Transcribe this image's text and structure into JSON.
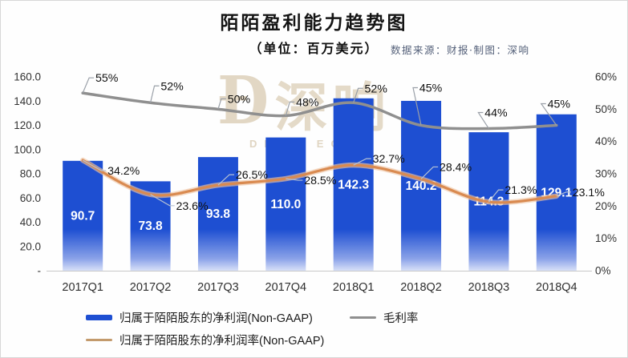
{
  "header": {
    "title": "陌陌盈利能力趋势图",
    "subtitle": "（单位：百万美元）",
    "source": "数据来源：财报·制图：深响"
  },
  "watermark": {
    "cn": "深响",
    "en": "DEEP ECHO"
  },
  "chart_data": {
    "type": "combo",
    "categories": [
      "2017Q1",
      "2017Q2",
      "2017Q3",
      "2017Q4",
      "2018Q1",
      "2018Q2",
      "2018Q3",
      "2018Q4"
    ],
    "series": [
      {
        "name": "归属于陌陌股东的净利润(Non-GAAP)",
        "type": "bar",
        "axis": "left",
        "color": "#1e4fd2",
        "values": [
          90.7,
          73.8,
          93.8,
          110.0,
          142.3,
          140.2,
          114.3,
          129.1
        ],
        "labels": [
          "90.7",
          "73.8",
          "93.8",
          "110.0",
          "142.3",
          "140.2",
          "114.3",
          "129.1"
        ]
      },
      {
        "name": "毛利率",
        "type": "line",
        "axis": "right",
        "color": "#8f8f8f",
        "values": [
          55,
          52,
          50,
          48,
          52,
          45,
          44,
          45
        ],
        "labels": [
          "55%",
          "52%",
          "50%",
          "48%",
          "52%",
          "45%",
          "44%",
          "45%"
        ]
      },
      {
        "name": "归属于陌陌股东的净利润率(Non-GAAP)",
        "type": "line",
        "axis": "right",
        "color": "#d98a50",
        "values": [
          34.2,
          23.6,
          26.5,
          28.5,
          32.7,
          28.4,
          21.3,
          23.1
        ],
        "labels": [
          "34.2%",
          "23.6%",
          "26.5%",
          "28.5%",
          "32.7%",
          "28.4%",
          "21.3%",
          "23.1%"
        ]
      }
    ],
    "left_axis": {
      "min": 0,
      "max": 160,
      "ticks": [
        "160.0",
        "140.0",
        "120.0",
        "100.0",
        "80.0",
        "60.0",
        "40.0",
        "20.0",
        "-"
      ]
    },
    "right_axis": {
      "min": 0,
      "max": 60,
      "ticks": [
        "60%",
        "50%",
        "40%",
        "30%",
        "20%",
        "10%",
        "0%"
      ]
    },
    "grid": false,
    "legend_position": "bottom"
  },
  "legend": {
    "items": [
      {
        "label": "归属于陌陌股东的净利润(Non-GAAP)",
        "swatch": "bar",
        "color": "#1e4fd2"
      },
      {
        "label": "毛利率",
        "swatch": "line",
        "color": "#8f8f8f"
      },
      {
        "label": "归属于陌陌股东的净利润率(Non-GAAP)",
        "swatch": "line",
        "color": "#c39a6c"
      }
    ]
  }
}
